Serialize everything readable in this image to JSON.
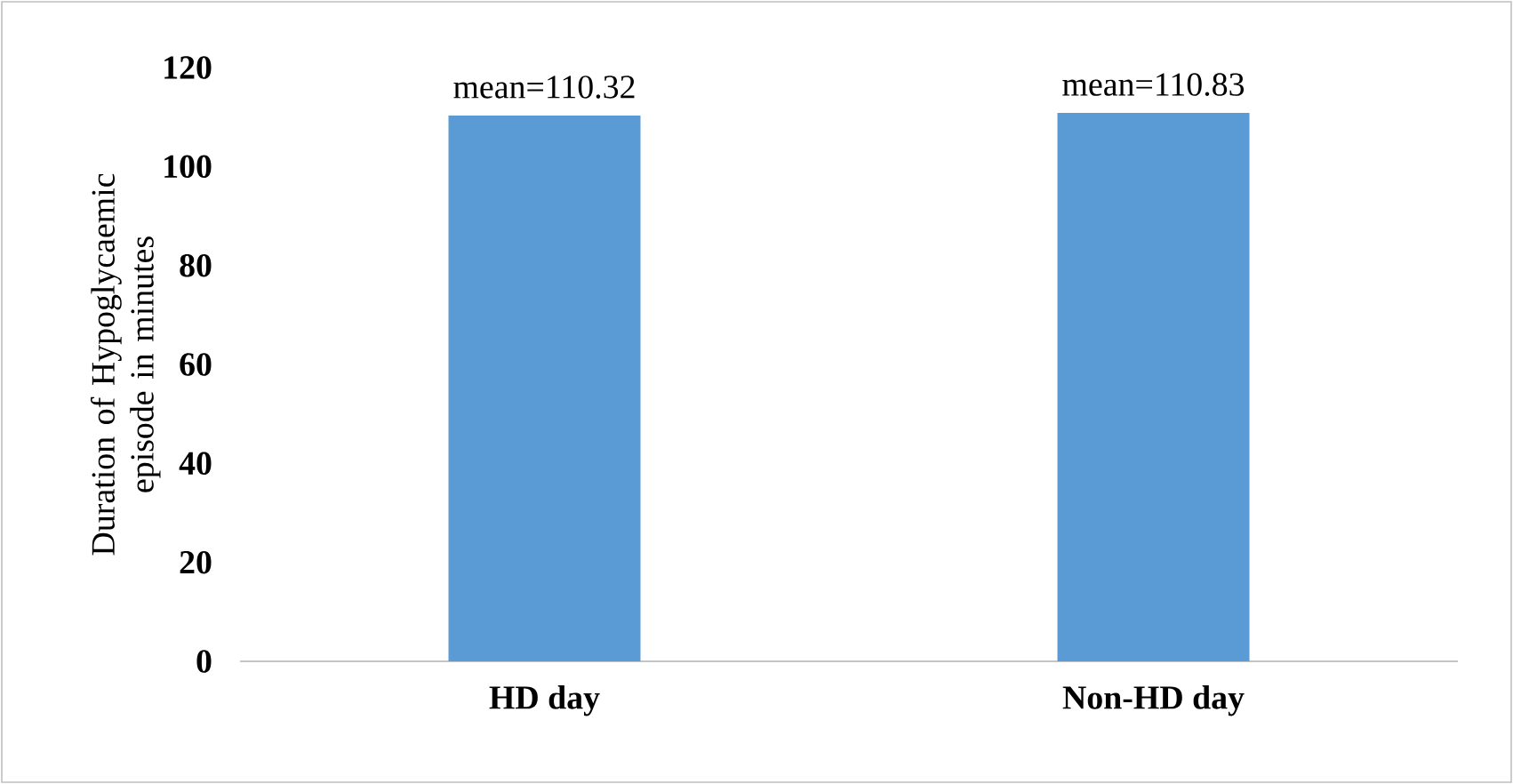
{
  "chart_data": {
    "type": "bar",
    "ylabel": "Duration of Hypoglycaemic episode in minutes",
    "categories": [
      "HD day",
      "Non-HD day"
    ],
    "values": [
      110.32,
      110.83
    ],
    "value_labels": [
      "mean=110.32",
      "mean=110.83"
    ],
    "color": "#5b9bd5",
    "ylim": [
      0,
      120
    ],
    "yticks": [
      0,
      20,
      40,
      60,
      80,
      100,
      120
    ],
    "grid": false
  }
}
